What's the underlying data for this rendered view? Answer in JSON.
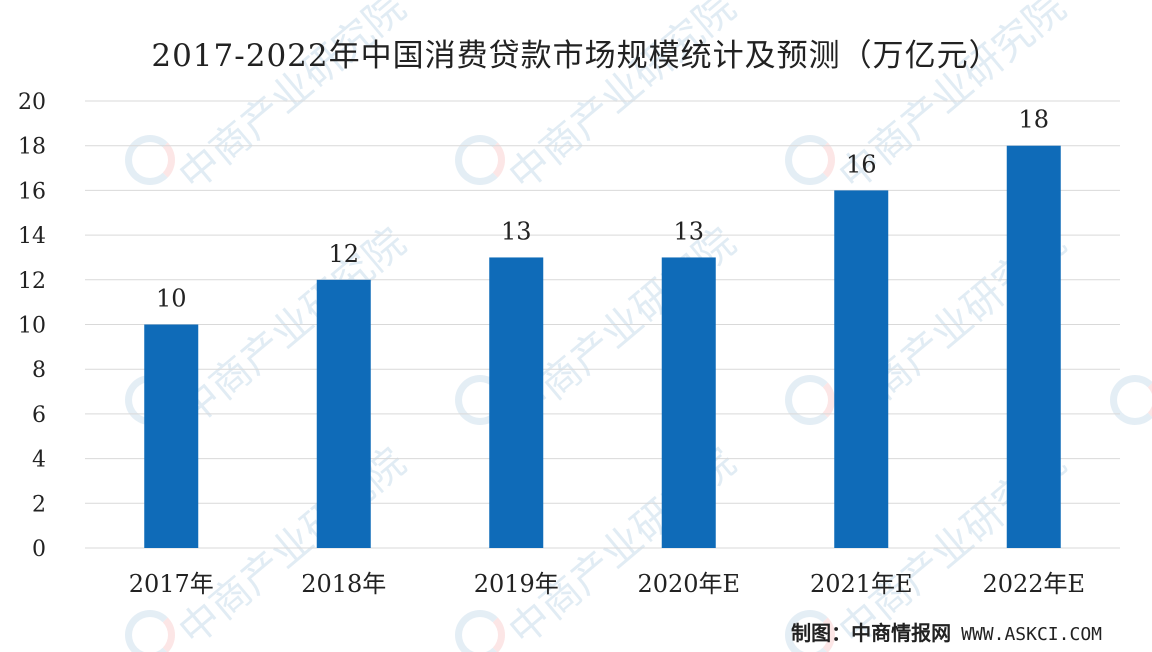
{
  "chart_data": {
    "type": "bar",
    "title": "2017-2022年中国消费贷款市场规模统计及预测（万亿元）",
    "categories": [
      "2017年",
      "2018年",
      "2019年",
      "2020年E",
      "2021年E",
      "2022年E"
    ],
    "values": [
      10,
      12,
      13,
      13,
      16,
      18
    ],
    "data_labels": [
      "10",
      "12",
      "13",
      "13",
      "16",
      "18"
    ],
    "yticks": [
      "0",
      "2",
      "4",
      "6",
      "8",
      "10",
      "12",
      "14",
      "16",
      "18",
      "20"
    ],
    "ylim": [
      0,
      20
    ],
    "xlabel": "",
    "ylabel": "",
    "grid": true,
    "bar_color": "#0f6bb8"
  },
  "source": {
    "label": "制图：中商情报网",
    "url": "WWW.ASKCI.COM"
  },
  "watermark": {
    "text": "中商产业研究院"
  }
}
